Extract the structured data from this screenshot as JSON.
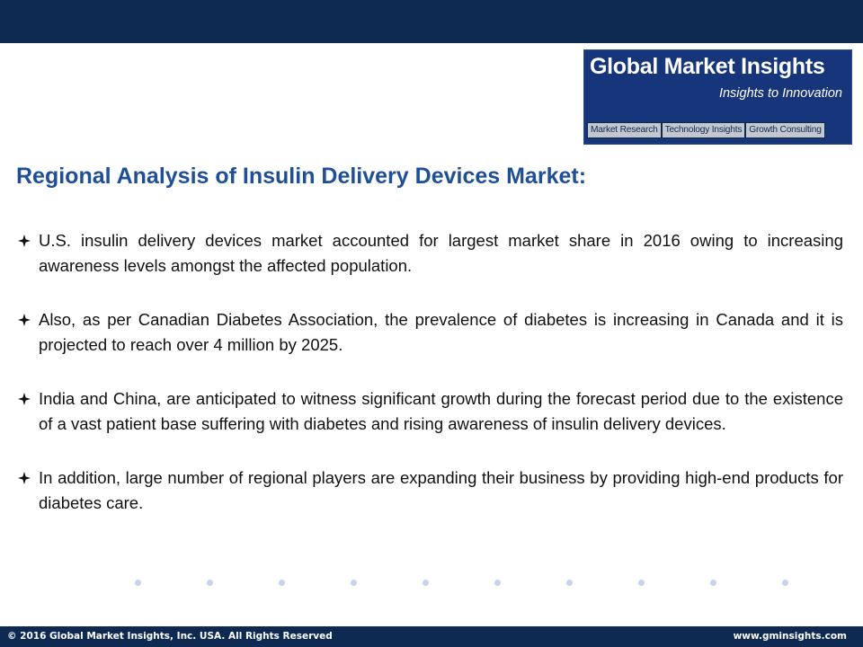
{
  "logo": {
    "title": "Global Market Insights",
    "tagline": "Insights to Innovation",
    "services": [
      "Market Research",
      "Technology Insights",
      "Growth Consulting"
    ]
  },
  "slide": {
    "title": "Regional Analysis of Insulin Delivery Devices Market:",
    "bullets": [
      "U.S. insulin delivery devices market accounted for largest market share in 2016 owing to increasing awareness levels amongst the affected population.",
      "Also, as per Canadian Diabetes Association, the prevalence of diabetes is increasing in Canada and it is projected to reach over 4 million by 2025.",
      "India and China, are anticipated to witness significant growth during the forecast period due to the existence of a vast patient base suffering with diabetes and rising awareness of insulin delivery devices.",
      "In addition, large number of regional players are expanding their business by providing high-end products for diabetes care."
    ]
  },
  "footer": {
    "copyright": "© 2016 Global Market Insights, Inc. USA.  All Rights Reserved",
    "website": "www.gminsights.com"
  },
  "colors": {
    "header_bar": "#0e2a53",
    "title": "#1f4f97",
    "logo_bg": "#16357a",
    "dot": "#c6d3e8"
  },
  "icons": {
    "bullet": "four-point-star-diamond-icon",
    "decoration": "dot-separator"
  }
}
